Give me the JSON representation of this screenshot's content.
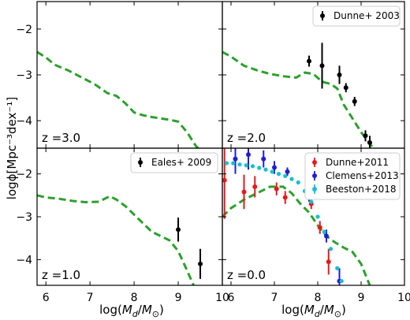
{
  "figure": {
    "ylabel": "logϕ[Mpc⁻³dex⁻¹]",
    "xlabel": "log(M_d/M_⊙)"
  },
  "chart_data": [
    {
      "type": "line",
      "panel": "top-left",
      "annotation": "z =3.0",
      "xlim": [
        5.8,
        10.0
      ],
      "ylim": [
        -4.6,
        -1.4
      ],
      "x_ticks": [
        6,
        7,
        8,
        9,
        10
      ],
      "y_ticks": [
        -2,
        -3,
        -4
      ],
      "show_x_tick_labels": false,
      "show_y_tick_labels": true,
      "model": {
        "color": "#2ca02c",
        "style": "dashed",
        "x": [
          5.8,
          6.0,
          6.2,
          6.5,
          6.8,
          7.1,
          7.4,
          7.6,
          7.8,
          8.0,
          8.2,
          8.4,
          8.6,
          8.8,
          9.0,
          9.2,
          9.4,
          9.5
        ],
        "y": [
          -2.5,
          -2.62,
          -2.78,
          -2.9,
          -3.05,
          -3.2,
          -3.4,
          -3.46,
          -3.62,
          -3.82,
          -3.88,
          -3.92,
          -3.95,
          -3.98,
          -4.02,
          -4.25,
          -4.55,
          -4.65
        ]
      },
      "legend": [],
      "series": []
    },
    {
      "type": "line",
      "panel": "top-right",
      "annotation": "z =2.0",
      "xlim": [
        5.8,
        10.0
      ],
      "ylim": [
        -4.6,
        -1.4
      ],
      "x_ticks": [
        6,
        7,
        8,
        9,
        10
      ],
      "y_ticks": [
        -2,
        -3,
        -4
      ],
      "show_x_tick_labels": false,
      "show_y_tick_labels": false,
      "model": {
        "color": "#2ca02c",
        "style": "dashed",
        "x": [
          5.8,
          6.0,
          6.3,
          6.6,
          6.9,
          7.2,
          7.5,
          7.7,
          7.9,
          8.1,
          8.3,
          8.45,
          8.6,
          8.8,
          9.0,
          9.2,
          9.4
        ],
        "y": [
          -2.5,
          -2.6,
          -2.8,
          -2.9,
          -2.98,
          -3.03,
          -3.06,
          -2.95,
          -2.98,
          -3.15,
          -3.2,
          -3.3,
          -3.65,
          -3.95,
          -4.25,
          -4.5,
          -4.75
        ]
      },
      "legend": [
        {
          "label": "Dunne+ 2003",
          "color": "#000000"
        }
      ],
      "series": [
        {
          "name": "Dunne+ 2003",
          "color": "#000000",
          "points": [
            {
              "x": 7.8,
              "y": -2.7,
              "err": 0.12
            },
            {
              "x": 8.1,
              "y": -2.8,
              "err": 0.5
            },
            {
              "x": 8.5,
              "y": -3.0,
              "err": 0.2
            },
            {
              "x": 8.65,
              "y": -3.28,
              "err": 0.1
            },
            {
              "x": 8.85,
              "y": -3.58,
              "err": 0.1
            },
            {
              "x": 9.1,
              "y": -4.33,
              "err": 0.12
            },
            {
              "x": 9.2,
              "y": -4.48,
              "err": 0.15
            }
          ]
        }
      ]
    },
    {
      "type": "line",
      "panel": "bottom-left",
      "annotation": "z =1.0",
      "xlim": [
        5.8,
        10.0
      ],
      "ylim": [
        -4.6,
        -1.4
      ],
      "x_ticks": [
        6,
        7,
        8,
        9,
        10
      ],
      "y_ticks": [
        -2,
        -3,
        -4
      ],
      "show_x_tick_labels": true,
      "show_y_tick_labels": true,
      "model": {
        "color": "#2ca02c",
        "style": "dashed",
        "x": [
          5.8,
          6.0,
          6.3,
          6.6,
          6.9,
          7.2,
          7.45,
          7.6,
          7.8,
          8.0,
          8.2,
          8.4,
          8.6,
          8.8,
          9.0,
          9.2,
          9.4
        ],
        "y": [
          -2.5,
          -2.55,
          -2.58,
          -2.63,
          -2.66,
          -2.65,
          -2.52,
          -2.6,
          -2.75,
          -2.95,
          -3.15,
          -3.35,
          -3.45,
          -3.55,
          -3.8,
          -4.25,
          -4.72
        ]
      },
      "legend": [
        {
          "label": "Eales+ 2009",
          "color": "#000000"
        }
      ],
      "series": [
        {
          "name": "Eales+ 2009",
          "color": "#000000",
          "points": [
            {
              "x": 9.0,
              "y": -3.3,
              "err": 0.28
            },
            {
              "x": 9.5,
              "y": -4.1,
              "err": 0.35
            }
          ]
        }
      ]
    },
    {
      "type": "line",
      "panel": "bottom-right",
      "annotation": "z =0.0",
      "xlim": [
        5.8,
        10.0
      ],
      "ylim": [
        -4.6,
        -1.4
      ],
      "x_ticks": [
        6,
        7,
        8,
        9,
        10
      ],
      "y_ticks": [
        -2,
        -3,
        -4
      ],
      "show_x_tick_labels": true,
      "show_y_tick_labels": false,
      "model": {
        "color": "#2ca02c",
        "style": "dashed",
        "x": [
          5.8,
          6.0,
          6.3,
          6.6,
          6.9,
          7.2,
          7.4,
          7.6,
          7.8,
          8.0,
          8.2,
          8.4,
          8.6,
          8.8,
          9.0,
          9.2
        ],
        "y": [
          -3.0,
          -2.8,
          -2.6,
          -2.45,
          -2.3,
          -2.3,
          -2.45,
          -2.7,
          -2.9,
          -3.2,
          -3.45,
          -3.6,
          -3.72,
          -3.82,
          -4.1,
          -4.6
        ]
      },
      "legend": [
        {
          "label": "Dunne+2011",
          "color": "#e41a1c"
        },
        {
          "label": "Clemens+2013",
          "color": "#1f1fd6"
        },
        {
          "label": "Beeston+2018",
          "color": "#17becf"
        }
      ],
      "series": [
        {
          "name": "Dunne+2011",
          "color": "#e41a1c",
          "points": [
            {
              "x": 5.85,
              "y": -2.15,
              "err": 0.9
            },
            {
              "x": 6.3,
              "y": -2.42,
              "err": 0.4
            },
            {
              "x": 6.55,
              "y": -2.3,
              "err": 0.25
            },
            {
              "x": 7.05,
              "y": -2.35,
              "err": 0.15
            },
            {
              "x": 7.25,
              "y": -2.55,
              "err": 0.15
            },
            {
              "x": 7.85,
              "y": -2.7,
              "err": 0.12
            },
            {
              "x": 8.05,
              "y": -3.25,
              "err": 0.15
            },
            {
              "x": 8.25,
              "y": -4.05,
              "err": 0.3
            }
          ]
        },
        {
          "name": "Clemens+2013",
          "color": "#1f1fd6",
          "points": [
            {
              "x": 6.1,
              "y": -1.65,
              "err": 0.35
            },
            {
              "x": 6.4,
              "y": -1.55,
              "err": 0.35
            },
            {
              "x": 6.75,
              "y": -1.65,
              "err": 0.2
            },
            {
              "x": 7.0,
              "y": -1.85,
              "err": 0.15
            },
            {
              "x": 7.3,
              "y": -1.95,
              "err": 0.1
            },
            {
              "x": 7.8,
              "y": -2.55,
              "err": 0.1
            },
            {
              "x": 8.2,
              "y": -3.45,
              "err": 0.15
            },
            {
              "x": 8.5,
              "y": -4.5,
              "err": 0.3
            }
          ]
        },
        {
          "name": "Beeston+2018",
          "color": "#17becf",
          "marker": "dot",
          "points": [
            {
              "x": 5.9,
              "y": -1.75
            },
            {
              "x": 6.05,
              "y": -1.75
            },
            {
              "x": 6.2,
              "y": -1.78
            },
            {
              "x": 6.35,
              "y": -1.8
            },
            {
              "x": 6.5,
              "y": -1.82
            },
            {
              "x": 6.65,
              "y": -1.86
            },
            {
              "x": 6.8,
              "y": -1.9
            },
            {
              "x": 6.95,
              "y": -1.95
            },
            {
              "x": 7.1,
              "y": -2.0
            },
            {
              "x": 7.25,
              "y": -2.05
            },
            {
              "x": 7.4,
              "y": -2.12
            },
            {
              "x": 7.55,
              "y": -2.2
            },
            {
              "x": 7.7,
              "y": -2.4
            },
            {
              "x": 7.85,
              "y": -2.65
            },
            {
              "x": 8.0,
              "y": -3.0
            },
            {
              "x": 8.15,
              "y": -3.35
            },
            {
              "x": 8.3,
              "y": -3.75
            },
            {
              "x": 8.45,
              "y": -4.2
            },
            {
              "x": 8.55,
              "y": -4.5
            }
          ]
        }
      ]
    }
  ]
}
